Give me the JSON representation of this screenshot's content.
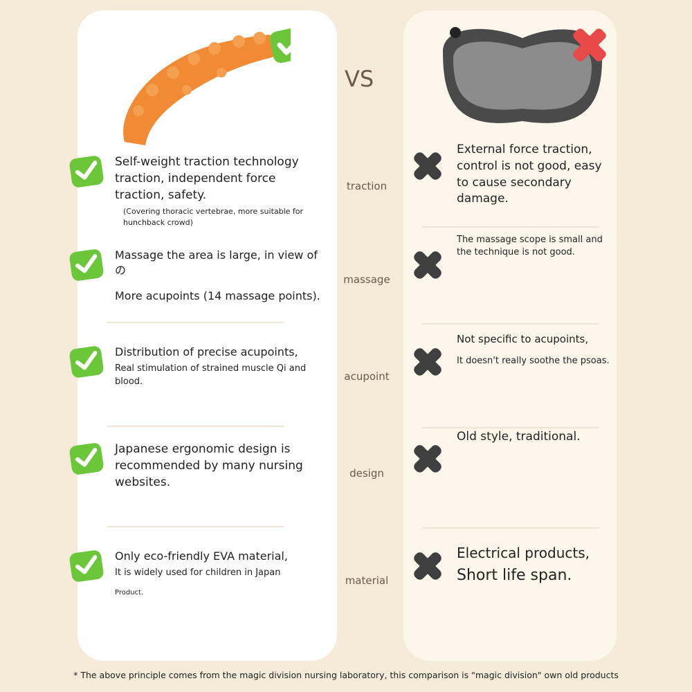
{
  "vs": "VS",
  "colors": {
    "check": "#6cc63a",
    "cross": "#3f3f3f",
    "badX": "#e84a4a",
    "product": "#f08a34"
  },
  "rows": [
    {
      "label": "traction",
      "good": "Self-weight traction technology traction, independent force traction, safety.",
      "good_note": "(Covering thoracic vertebrae, more suitable for hunchback crowd)",
      "bad": "External force traction, control is not good, easy to cause secondary damage.",
      "bad_note": ""
    },
    {
      "label": "massage",
      "good": "Massage the area is large, in view of の",
      "good_note": "More acupoints (14 massage points).",
      "bad": "The massage scope is small and the technique is not good.",
      "bad_note": ""
    },
    {
      "label": "acupoint",
      "good": "Distribution of precise acupoints,",
      "good_note": "Real stimulation of strained muscle Qi and blood.",
      "bad": "Not specific to acupoints,",
      "bad_note": "It doesn't really soothe the psoas."
    },
    {
      "label": "design",
      "good": "Japanese ergonomic design is recommended by many nursing websites.",
      "good_note": "",
      "bad": "Old style, traditional.",
      "bad_note": ""
    },
    {
      "label": "material",
      "good": "Only eco-friendly EVA material,",
      "good_note": "It is widely used for children in Japan",
      "good_note2": "Product.",
      "bad": "Electrical products,",
      "bad_note": "Short life span."
    }
  ],
  "footer": "* The above principle comes from the magic division nursing laboratory, this comparison is \"magic division\" own old products"
}
